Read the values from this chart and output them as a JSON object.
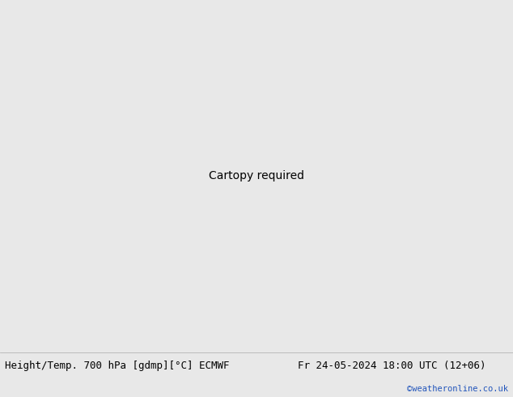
{
  "title_left": "Height/Temp. 700 hPa [gdmp][°C] ECMWF",
  "title_right": "Fr 24-05-2024 18:00 UTC (12+06)",
  "watermark": "©weatheronline.co.uk",
  "fig_width": 6.34,
  "fig_height": 4.9,
  "dpi": 100,
  "font_size_title": 9.0,
  "font_size_watermark": 7.5,
  "map_extent": [
    -45,
    40,
    25,
    75
  ],
  "land_color": "#c8d8b8",
  "bright_land_color": "#a8d870",
  "ocean_color": "#c8c8c8",
  "border_color": "#888888",
  "geop_color": "#000000",
  "temp_orange_color": "#ff8800",
  "temp_magenta_color": "#cc0066",
  "temp_red_color": "#cc2200",
  "bottom_color": "#e8e8e8"
}
